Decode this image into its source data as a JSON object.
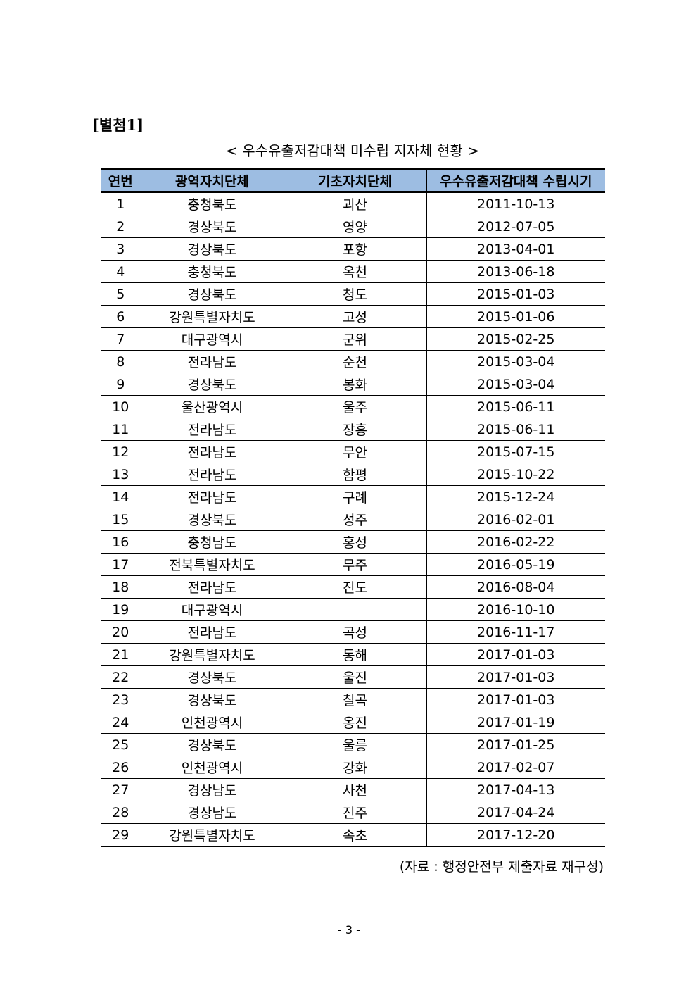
{
  "attachment_label": "[별첨1]",
  "title": "< 우수유출저감대책 미수립 지자체 현황 >",
  "table": {
    "headers": [
      "연번",
      "광역자치단체",
      "기초자치단체",
      "우수유출저감대책 수립시기"
    ],
    "rows": [
      [
        "1",
        "충청북도",
        "괴산",
        "2011-10-13"
      ],
      [
        "2",
        "경상북도",
        "영양",
        "2012-07-05"
      ],
      [
        "3",
        "경상북도",
        "포항",
        "2013-04-01"
      ],
      [
        "4",
        "충청북도",
        "옥천",
        "2013-06-18"
      ],
      [
        "5",
        "경상북도",
        "청도",
        "2015-01-03"
      ],
      [
        "6",
        "강원특별자치도",
        "고성",
        "2015-01-06"
      ],
      [
        "7",
        "대구광역시",
        "군위",
        "2015-02-25"
      ],
      [
        "8",
        "전라남도",
        "순천",
        "2015-03-04"
      ],
      [
        "9",
        "경상북도",
        "봉화",
        "2015-03-04"
      ],
      [
        "10",
        "울산광역시",
        "울주",
        "2015-06-11"
      ],
      [
        "11",
        "전라남도",
        "장흥",
        "2015-06-11"
      ],
      [
        "12",
        "전라남도",
        "무안",
        "2015-07-15"
      ],
      [
        "13",
        "전라남도",
        "함평",
        "2015-10-22"
      ],
      [
        "14",
        "전라남도",
        "구례",
        "2015-12-24"
      ],
      [
        "15",
        "경상북도",
        "성주",
        "2016-02-01"
      ],
      [
        "16",
        "충청남도",
        "홍성",
        "2016-02-22"
      ],
      [
        "17",
        "전북특별자치도",
        "무주",
        "2016-05-19"
      ],
      [
        "18",
        "전라남도",
        "진도",
        "2016-08-04"
      ],
      [
        "19",
        "대구광역시",
        "",
        "2016-10-10"
      ],
      [
        "20",
        "전라남도",
        "곡성",
        "2016-11-17"
      ],
      [
        "21",
        "강원특별자치도",
        "동해",
        "2017-01-03"
      ],
      [
        "22",
        "경상북도",
        "울진",
        "2017-01-03"
      ],
      [
        "23",
        "경상북도",
        "칠곡",
        "2017-01-03"
      ],
      [
        "24",
        "인천광역시",
        "옹진",
        "2017-01-19"
      ],
      [
        "25",
        "경상북도",
        "울릉",
        "2017-01-25"
      ],
      [
        "26",
        "인천광역시",
        "강화",
        "2017-02-07"
      ],
      [
        "27",
        "경상남도",
        "사천",
        "2017-04-13"
      ],
      [
        "28",
        "경상남도",
        "진주",
        "2017-04-24"
      ],
      [
        "29",
        "강원특별자치도",
        "속초",
        "2017-12-20"
      ]
    ]
  },
  "source": "(자료 : 행정안전부 제출자료 재구성)",
  "page_number": "- 3 -",
  "colors": {
    "header_bg": "#9dbde2"
  }
}
